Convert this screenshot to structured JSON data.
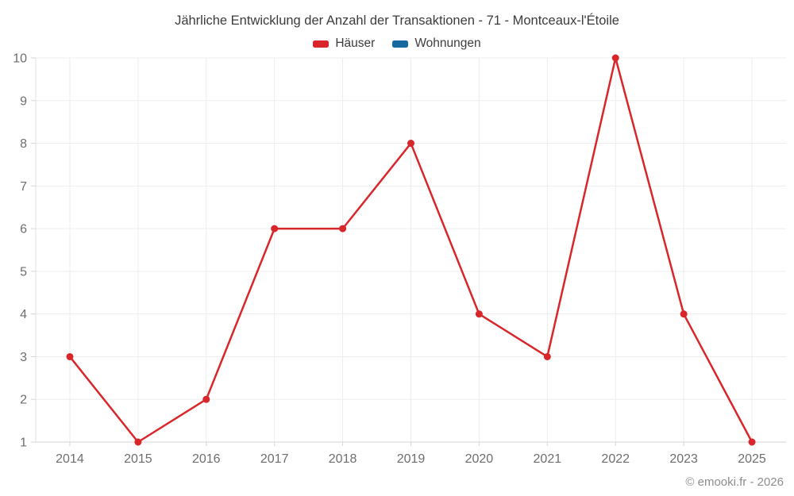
{
  "title": "Jährliche Entwicklung der Anzahl der Transaktionen - 71 - Montceaux-l'Étoile",
  "legend": {
    "items": [
      {
        "label": "Häuser",
        "color": "#d9262b"
      },
      {
        "label": "Wohnungen",
        "color": "#16699f"
      }
    ]
  },
  "footer": {
    "copyright": "© emooki.fr - 2026"
  },
  "chart_data": {
    "type": "line",
    "title": "Jährliche Entwicklung der Anzahl der Transaktionen - 71 - Montceaux-l'Étoile",
    "categories": [
      "2014",
      "2015",
      "2016",
      "2017",
      "2018",
      "2019",
      "2020",
      "2021",
      "2022",
      "2023",
      "2025"
    ],
    "series": [
      {
        "name": "Häuser",
        "color": "#d9262b",
        "values": [
          3,
          1,
          2,
          6,
          6,
          8,
          4,
          3,
          10,
          4,
          1
        ]
      },
      {
        "name": "Wohnungen",
        "color": "#16699f",
        "values": []
      }
    ],
    "xlabel": "",
    "ylabel": "",
    "ylim": [
      1,
      10
    ],
    "yticks": [
      1,
      2,
      3,
      4,
      5,
      6,
      7,
      8,
      9,
      10
    ],
    "grid": true,
    "legend_position": "top"
  }
}
